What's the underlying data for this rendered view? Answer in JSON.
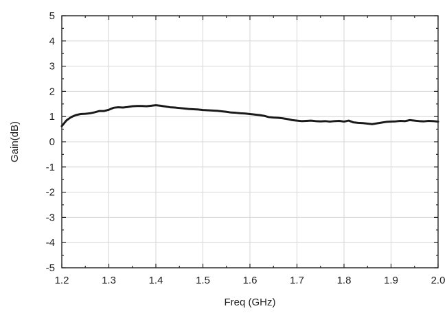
{
  "chart_data": {
    "type": "line",
    "title": "",
    "xlabel": "Freq (GHz)",
    "ylabel": "Gain(dB)",
    "xlim": [
      1.2,
      2.0
    ],
    "ylim": [
      -5,
      5
    ],
    "x_ticks": [
      "1.2",
      "1.3",
      "1.4",
      "1.5",
      "1.6",
      "1.7",
      "1.8",
      "1.9",
      "2.0"
    ],
    "y_ticks": [
      "5",
      "4",
      "3",
      "2",
      "1",
      "0",
      "-1",
      "-2",
      "-3",
      "-4",
      "-5"
    ],
    "grid": true,
    "legend": "none",
    "series": [
      {
        "color": "#1a1a1a",
        "x": [
          1.2,
          1.21,
          1.22,
          1.23,
          1.24,
          1.25,
          1.26,
          1.27,
          1.28,
          1.29,
          1.3,
          1.31,
          1.32,
          1.33,
          1.34,
          1.35,
          1.36,
          1.37,
          1.38,
          1.39,
          1.4,
          1.41,
          1.42,
          1.43,
          1.44,
          1.45,
          1.46,
          1.47,
          1.48,
          1.49,
          1.5,
          1.51,
          1.52,
          1.53,
          1.54,
          1.55,
          1.56,
          1.57,
          1.58,
          1.59,
          1.6,
          1.61,
          1.62,
          1.63,
          1.64,
          1.65,
          1.66,
          1.67,
          1.68,
          1.69,
          1.7,
          1.71,
          1.72,
          1.73,
          1.74,
          1.75,
          1.76,
          1.77,
          1.78,
          1.79,
          1.8,
          1.81,
          1.82,
          1.83,
          1.84,
          1.85,
          1.86,
          1.87,
          1.88,
          1.89,
          1.9,
          1.91,
          1.92,
          1.93,
          1.94,
          1.95,
          1.96,
          1.97,
          1.98,
          1.99,
          2.0
        ],
        "y": [
          0.62,
          0.85,
          0.98,
          1.06,
          1.1,
          1.11,
          1.13,
          1.17,
          1.22,
          1.22,
          1.27,
          1.35,
          1.37,
          1.36,
          1.38,
          1.41,
          1.42,
          1.42,
          1.41,
          1.43,
          1.45,
          1.43,
          1.4,
          1.37,
          1.36,
          1.34,
          1.32,
          1.3,
          1.29,
          1.28,
          1.26,
          1.25,
          1.24,
          1.23,
          1.21,
          1.19,
          1.16,
          1.15,
          1.13,
          1.12,
          1.1,
          1.08,
          1.06,
          1.03,
          0.98,
          0.96,
          0.95,
          0.93,
          0.9,
          0.86,
          0.84,
          0.82,
          0.83,
          0.84,
          0.82,
          0.81,
          0.82,
          0.8,
          0.82,
          0.83,
          0.8,
          0.84,
          0.77,
          0.75,
          0.74,
          0.72,
          0.7,
          0.73,
          0.76,
          0.79,
          0.8,
          0.81,
          0.83,
          0.82,
          0.86,
          0.84,
          0.82,
          0.81,
          0.83,
          0.82,
          0.8
        ]
      }
    ]
  }
}
